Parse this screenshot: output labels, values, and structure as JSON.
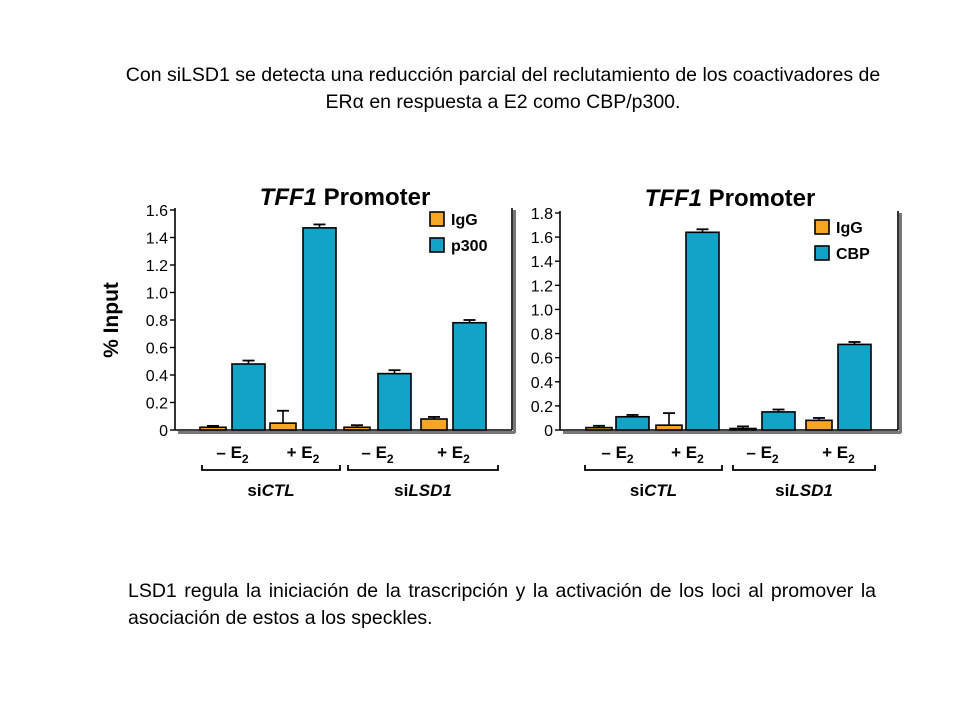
{
  "captions": {
    "top": "Con siLSD1 se detecta una reducción parcial del reclutamiento de los coactivadores de ERα en respuesta a E2 como CBP/p300.",
    "bottom": "LSD1 regula la iniciación de la trascripción y la activación de los loci al promover la asociación de estos a los speckles."
  },
  "colors": {
    "IgG": "#f5a623",
    "target": "#12a3c7"
  },
  "chart_data": [
    {
      "type": "bar",
      "title": "TFF1 Promoter",
      "title_italic_part": "TFF1",
      "title_rest": "Promoter",
      "ylabel": "% Input",
      "ylim": [
        0,
        1.6
      ],
      "yticks": [
        "0",
        "0.2",
        "0.4",
        "0.6",
        "0.8",
        "1.0",
        "1.2",
        "1.4",
        "1.6"
      ],
      "categories": [
        "– E2",
        "+ E2",
        "– E2",
        "+ E2"
      ],
      "groups": [
        {
          "prefix": "si",
          "name": "CTL",
          "categories": [
            0,
            1
          ]
        },
        {
          "prefix": "si",
          "name": "LSD1",
          "categories": [
            2,
            3
          ]
        }
      ],
      "legend_position": "top-right",
      "series": [
        {
          "name": "IgG",
          "values": [
            0.02,
            0.05,
            0.02,
            0.08
          ],
          "errors": [
            0.01,
            0.09,
            0.015,
            0.015
          ]
        },
        {
          "name": "p300",
          "values": [
            0.48,
            1.47,
            0.41,
            0.78
          ],
          "errors": [
            0.025,
            0.025,
            0.025,
            0.02
          ]
        }
      ]
    },
    {
      "type": "bar",
      "title": "TFF1 Promoter",
      "title_italic_part": "TFF1",
      "title_rest": "Promoter",
      "ylabel": "",
      "ylim": [
        0,
        1.8
      ],
      "yticks": [
        "0",
        "0.2",
        "0.4",
        "0.6",
        "0.8",
        "1.0",
        "1.2",
        "1.4",
        "1.6",
        "1.8"
      ],
      "categories": [
        "– E2",
        "+ E2",
        "– E2",
        "+ E2"
      ],
      "groups": [
        {
          "prefix": "si",
          "name": "CTL",
          "categories": [
            0,
            1
          ]
        },
        {
          "prefix": "si",
          "name": "LSD1",
          "categories": [
            2,
            3
          ]
        }
      ],
      "legend_position": "top-right",
      "series": [
        {
          "name": "IgG",
          "values": [
            0.02,
            0.04,
            0.01,
            0.08
          ],
          "errors": [
            0.015,
            0.1,
            0.02,
            0.02
          ]
        },
        {
          "name": "CBP",
          "values": [
            0.11,
            1.64,
            0.15,
            0.71
          ],
          "errors": [
            0.015,
            0.025,
            0.02,
            0.02
          ]
        }
      ]
    }
  ]
}
